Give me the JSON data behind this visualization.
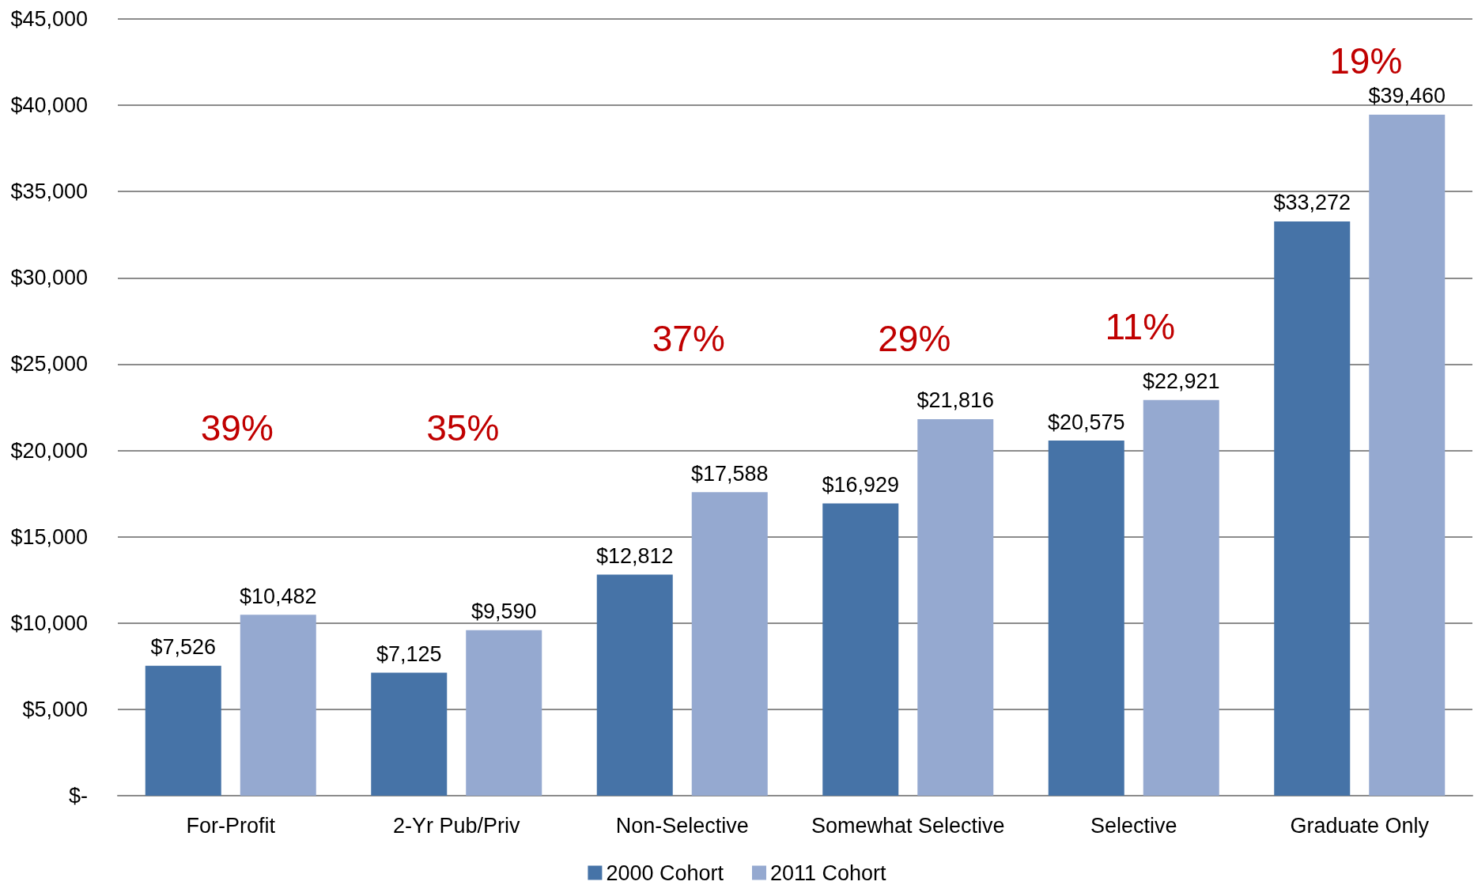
{
  "chart_data": {
    "type": "bar",
    "categories": [
      "For-Profit",
      "2-Yr Pub/Priv",
      "Non-Selective",
      "Somewhat Selective",
      "Selective",
      "Graduate Only"
    ],
    "series": [
      {
        "name": "2000 Cohort",
        "color": "#4673a7",
        "values": [
          7526,
          7125,
          12812,
          16929,
          20575,
          33272
        ],
        "value_labels": [
          "$7,526",
          "$7,125",
          "$12,812",
          "$16,929",
          "$20,575",
          "$33,272"
        ]
      },
      {
        "name": "2011 Cohort",
        "color": "#95a9d0",
        "values": [
          10482,
          9590,
          17588,
          21816,
          22921,
          39460
        ],
        "value_labels": [
          "$10,482",
          "$9,590",
          "$17,588",
          "$21,816",
          "$22,921",
          "$39,460"
        ]
      }
    ],
    "ylim": [
      0,
      45000
    ],
    "yticks": [
      {
        "value": 0,
        "label": "$-"
      },
      {
        "value": 5000,
        "label": "$5,000"
      },
      {
        "value": 10000,
        "label": "$10,000"
      },
      {
        "value": 15000,
        "label": "$15,000"
      },
      {
        "value": 20000,
        "label": "$20,000"
      },
      {
        "value": 25000,
        "label": "$25,000"
      },
      {
        "value": 30000,
        "label": "$30,000"
      },
      {
        "value": 35000,
        "label": "$35,000"
      },
      {
        "value": 40000,
        "label": "$40,000"
      },
      {
        "value": 45000,
        "label": "$45,000"
      }
    ],
    "annotations": [
      "39%",
      "35%",
      "37%",
      "29%",
      "11%",
      "19%"
    ],
    "grid": "y",
    "legend": "bottom"
  }
}
